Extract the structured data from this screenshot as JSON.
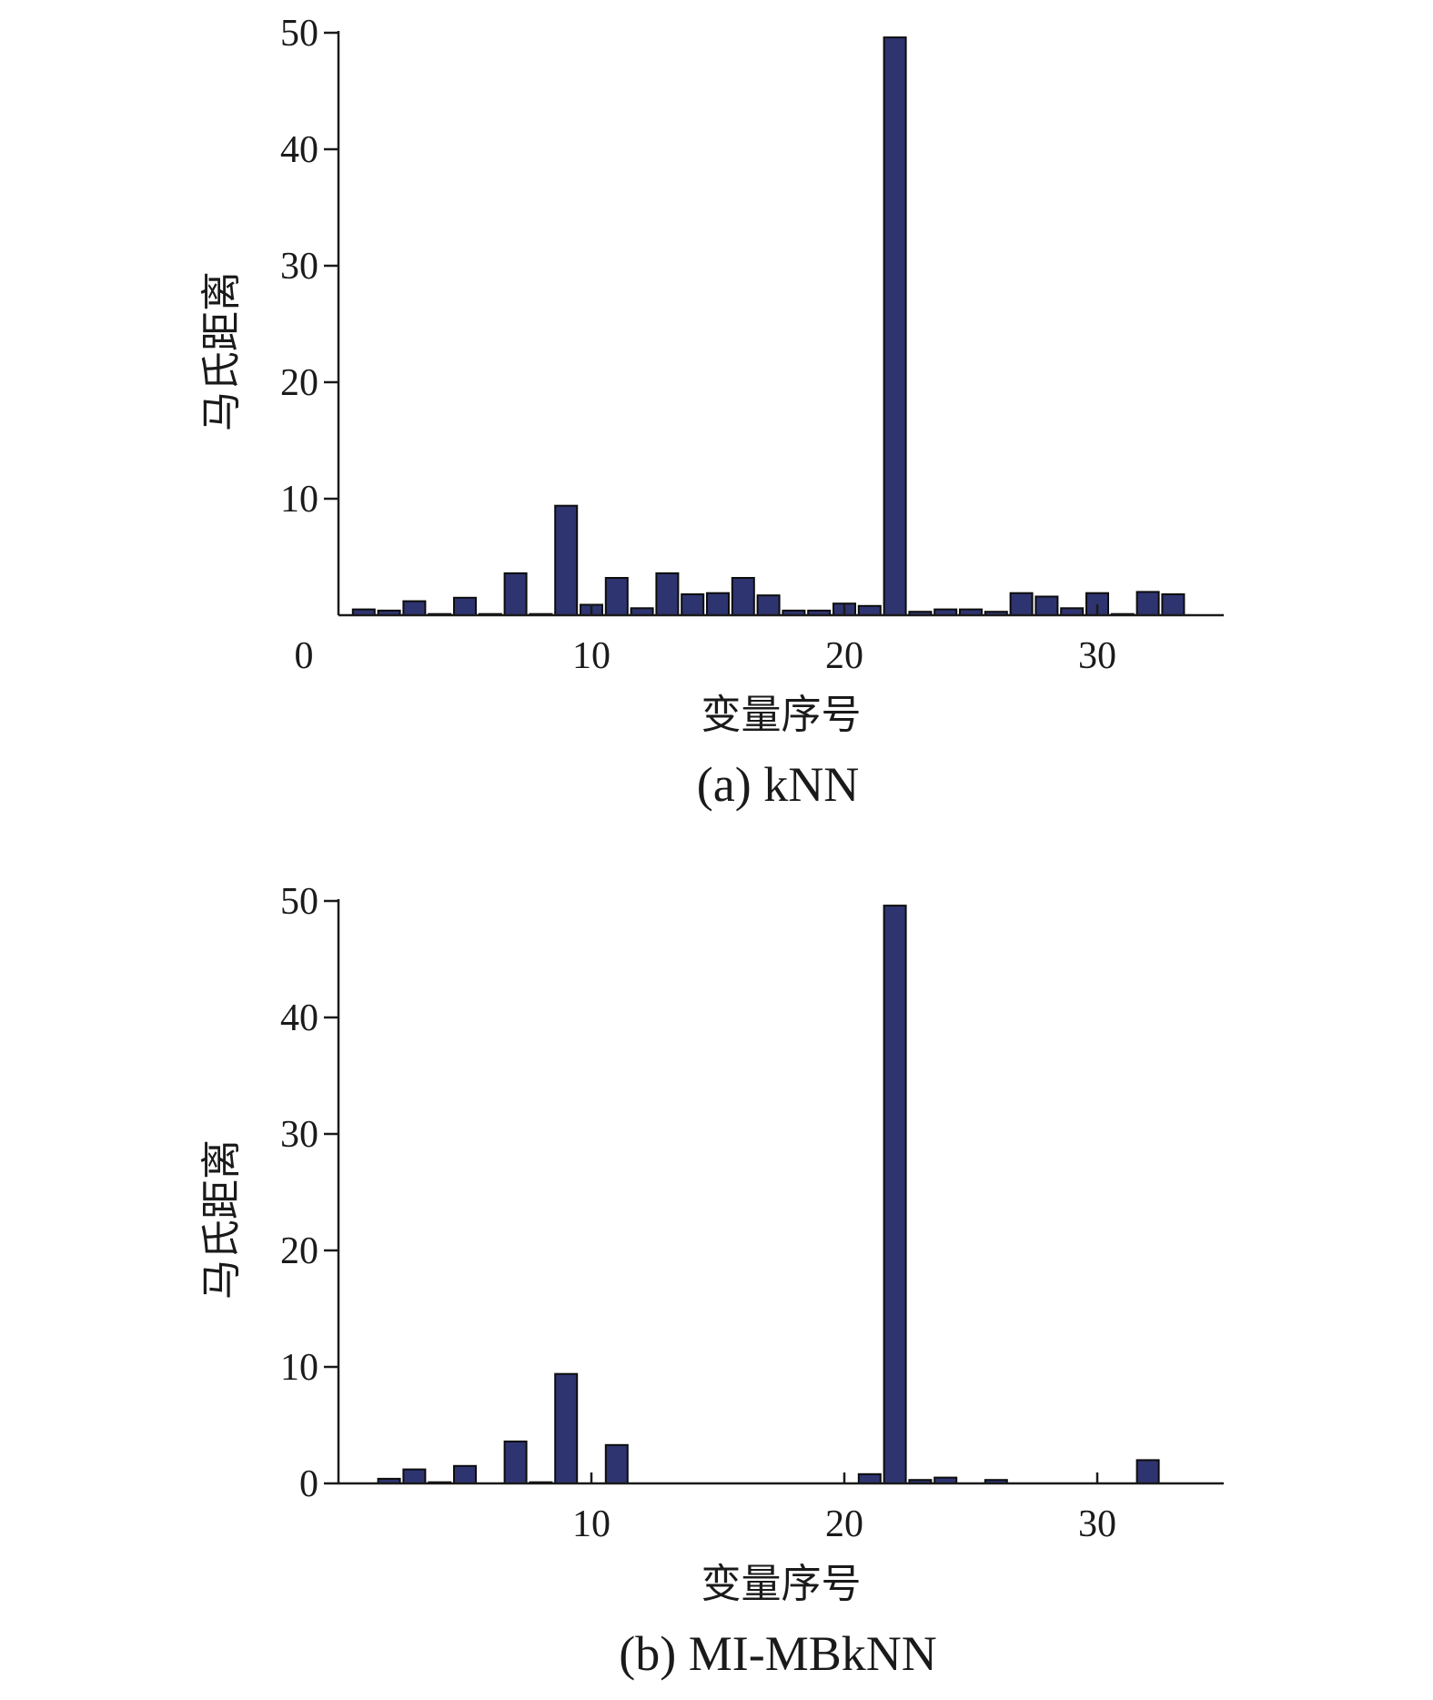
{
  "chart_data": [
    {
      "type": "bar",
      "caption": "(a) kNN",
      "xlabel": "变量序号",
      "ylabel": "马氏距离",
      "xlim": [
        0,
        35
      ],
      "ylim": [
        0,
        50
      ],
      "xticks": [
        0,
        10,
        20,
        30
      ],
      "yticks": [
        10,
        20,
        30,
        40,
        50
      ],
      "bar_color": "#2e3470",
      "x": [
        1,
        2,
        3,
        4,
        5,
        6,
        7,
        8,
        9,
        10,
        11,
        12,
        13,
        14,
        15,
        16,
        17,
        18,
        19,
        20,
        21,
        22,
        23,
        24,
        25,
        26,
        27,
        28,
        29,
        30,
        31,
        32,
        33
      ],
      "values": [
        0.5,
        0.4,
        1.2,
        0.1,
        1.5,
        0.1,
        3.6,
        0.1,
        9.4,
        0.9,
        3.2,
        0.6,
        3.6,
        1.8,
        1.9,
        3.2,
        1.7,
        0.4,
        0.4,
        1.0,
        0.8,
        49.6,
        0.3,
        0.5,
        0.5,
        0.3,
        1.9,
        1.6,
        0.6,
        1.9,
        0.1,
        2.0,
        1.8
      ]
    },
    {
      "type": "bar",
      "caption": "(b) MI-MBkNN",
      "xlabel": "变量序号",
      "ylabel": "马氏距离",
      "xlim": [
        0,
        35
      ],
      "ylim": [
        0,
        50
      ],
      "xticks": [
        10,
        20,
        30
      ],
      "yticks": [
        0,
        10,
        20,
        30,
        40,
        50
      ],
      "bar_color": "#2e3470",
      "x": [
        2,
        3,
        4,
        5,
        7,
        8,
        9,
        11,
        21,
        22,
        23,
        24,
        26,
        32
      ],
      "values": [
        0.4,
        1.2,
        0.1,
        1.5,
        3.6,
        0.1,
        9.4,
        3.3,
        0.8,
        49.6,
        0.3,
        0.5,
        0.3,
        2.0
      ]
    }
  ]
}
